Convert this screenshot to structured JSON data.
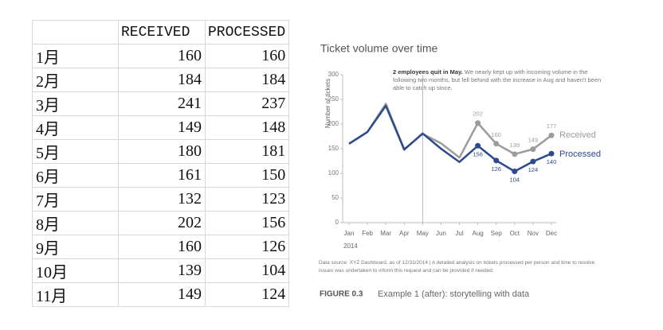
{
  "table": {
    "header": [
      "RECEIVED",
      "PROCESSED"
    ],
    "rows": [
      [
        "1月",
        160,
        160
      ],
      [
        "2月",
        184,
        184
      ],
      [
        "3月",
        241,
        237
      ],
      [
        "4月",
        149,
        148
      ],
      [
        "5月",
        180,
        181
      ],
      [
        "6月",
        161,
        150
      ],
      [
        "7月",
        132,
        123
      ],
      [
        "8月",
        202,
        156
      ],
      [
        "9月",
        160,
        126
      ],
      [
        "10月",
        139,
        104
      ],
      [
        "11月",
        149,
        124
      ]
    ]
  },
  "chart_data": {
    "type": "line",
    "title": "Ticket volume over time",
    "annotation_bold": "2 employees quit in May.",
    "annotation": "We nearly kept up with incoming volume in the following two months, but fell behind with the increase in Aug and haven't been able to catch up since.",
    "categories": [
      "Jan",
      "Feb",
      "Mar",
      "Apr",
      "May",
      "Jun",
      "Jul",
      "Aug",
      "Sep",
      "Oct",
      "Nov",
      "Dec"
    ],
    "x_year": "2014",
    "y_label": "Number of tickets",
    "series": [
      {
        "name": "Received",
        "color": "#9b9b9b",
        "values": [
          160,
          184,
          241,
          149,
          180,
          161,
          132,
          202,
          160,
          139,
          149,
          177
        ]
      },
      {
        "name": "Processed",
        "color": "#2c4a8c",
        "values": [
          160,
          184,
          237,
          148,
          181,
          150,
          123,
          156,
          126,
          104,
          124,
          140
        ]
      }
    ],
    "ylim": [
      0,
      300
    ],
    "yticks": [
      0,
      50,
      100,
      150,
      200,
      250,
      300
    ],
    "grid": false,
    "source": "Data source: XYZ Dashboard, as of 12/31/2014 | A detailed analysis on tickets processed per person and time to resolve issues was undertaken to inform this request and can be provided if needed.",
    "figure_label": "FIGURE 0.3",
    "caption": "Example 1 (after): storytelling with data"
  }
}
